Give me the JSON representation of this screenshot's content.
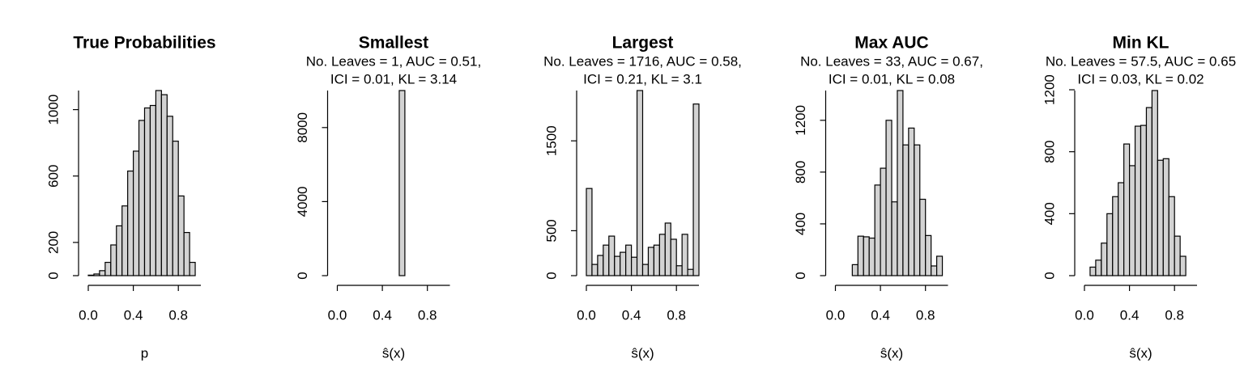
{
  "chart_data": [
    {
      "type": "histogram",
      "title": "True Probabilities",
      "xlabel": "p",
      "color": "#d3d3d3",
      "bins": [
        0,
        0.05,
        0.1,
        0.15,
        0.2,
        0.25,
        0.3,
        0.35,
        0.4,
        0.45,
        0.5,
        0.55,
        0.6,
        0.65,
        0.7,
        0.75,
        0.8,
        0.85,
        0.9,
        0.95
      ],
      "values": [
        3,
        10,
        30,
        80,
        185,
        300,
        420,
        630,
        750,
        935,
        1010,
        1025,
        1115,
        1090,
        960,
        810,
        480,
        260,
        80
      ],
      "xlim": [
        0,
        1
      ],
      "xticks": [
        {
          "value": 0,
          "label": "0.0"
        },
        0.4,
        0.8
      ],
      "ylim": [
        0,
        1115
      ],
      "yticks": [
        0,
        200,
        600,
        1000
      ]
    },
    {
      "type": "histogram",
      "title": "Smallest",
      "subtitle": [
        "No. Leaves = 1, AUC = 0.51,",
        "ICI = 0.01, KL = 3.14"
      ],
      "xlabel": "ŝ(x)",
      "color": "#d3d3d3",
      "bins": [
        0,
        0.05,
        0.1,
        0.15,
        0.2,
        0.25,
        0.3,
        0.35,
        0.4,
        0.45,
        0.5,
        0.55,
        0.6,
        0.65,
        0.7,
        0.75,
        0.8,
        0.85,
        0.9,
        0.95,
        1
      ],
      "values": [
        0,
        0,
        0,
        0,
        0,
        0,
        0,
        0,
        0,
        0,
        0,
        10000,
        0,
        0,
        0,
        0,
        0,
        0,
        0,
        0
      ],
      "xlim": [
        0,
        1
      ],
      "xticks": [
        {
          "value": 0,
          "label": "0.0"
        },
        0.4,
        0.8
      ],
      "ylim": [
        0,
        10000
      ],
      "yticks": [
        0,
        4000,
        8000
      ]
    },
    {
      "type": "histogram",
      "title": "Largest",
      "subtitle": [
        "No. Leaves = 1716, AUC = 0.58,",
        "ICI = 0.21, KL = 3.1"
      ],
      "xlabel": "ŝ(x)",
      "color": "#d3d3d3",
      "bins": [
        0,
        0.05,
        0.1,
        0.15,
        0.2,
        0.25,
        0.3,
        0.35,
        0.4,
        0.45,
        0.5,
        0.55,
        0.6,
        0.65,
        0.7,
        0.75,
        0.8,
        0.85,
        0.9,
        0.95,
        1
      ],
      "values": [
        970,
        125,
        225,
        340,
        440,
        215,
        260,
        340,
        205,
        2060,
        125,
        315,
        340,
        460,
        585,
        405,
        110,
        460,
        70,
        1910
      ],
      "xlim": [
        0,
        1
      ],
      "xticks": [
        {
          "value": 0,
          "label": "0.0"
        },
        0.4,
        0.8
      ],
      "ylim": [
        0,
        2060
      ],
      "yticks": [
        0,
        500,
        1500
      ]
    },
    {
      "type": "histogram",
      "title": "Max AUC",
      "subtitle": [
        "No. Leaves = 33, AUC = 0.67,",
        "ICI = 0.01, KL = 0.08"
      ],
      "xlabel": "ŝ(x)",
      "color": "#d3d3d3",
      "bins": [
        0,
        0.05,
        0.1,
        0.15,
        0.2,
        0.25,
        0.3,
        0.35,
        0.4,
        0.45,
        0.5,
        0.55,
        0.6,
        0.65,
        0.7,
        0.75,
        0.8,
        0.85,
        0.9,
        0.95
      ],
      "values": [
        0,
        0,
        0,
        85,
        305,
        300,
        290,
        700,
        830,
        1200,
        570,
        1430,
        1010,
        1140,
        1010,
        590,
        310,
        75,
        150
      ],
      "xlim": [
        0,
        1
      ],
      "xticks": [
        {
          "value": 0,
          "label": "0.0"
        },
        0.4,
        0.8
      ],
      "ylim": [
        0,
        1430
      ],
      "yticks": [
        0,
        400,
        800,
        1200
      ]
    },
    {
      "type": "histogram",
      "title": "Min KL",
      "subtitle": [
        "No. Leaves = 57.5, AUC = 0.65",
        "ICI = 0.03, KL = 0.02"
      ],
      "xlabel": "ŝ(x)",
      "color": "#d3d3d3",
      "bins": [
        0.05,
        0.1,
        0.15,
        0.2,
        0.25,
        0.3,
        0.35,
        0.4,
        0.45,
        0.5,
        0.55,
        0.6,
        0.65,
        0.7,
        0.75,
        0.8,
        0.85,
        0.9,
        0.95
      ],
      "values": [
        55,
        100,
        210,
        400,
        510,
        600,
        850,
        710,
        965,
        970,
        1085,
        1195,
        745,
        755,
        510,
        255,
        125,
        0
      ],
      "xlim": [
        0,
        1
      ],
      "xticks": [
        {
          "value": 0,
          "label": "0.0"
        },
        0.4,
        0.8
      ],
      "ylim": [
        0,
        1195
      ],
      "yticks": [
        0,
        400,
        800,
        1200
      ]
    }
  ]
}
